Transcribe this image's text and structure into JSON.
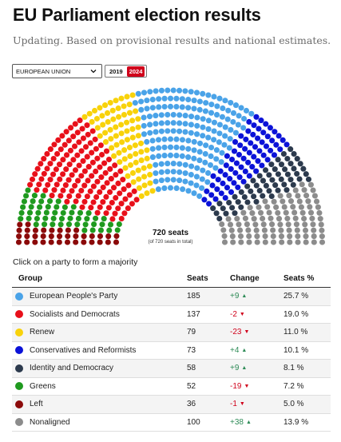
{
  "header": {
    "title": "EU Parliament election results",
    "subtitle": "Updating. Based on provisional results and national estimates."
  },
  "controls": {
    "region_select": "EUROPEAN UNION",
    "years": [
      "2019",
      "2024"
    ],
    "active_year": "2024"
  },
  "hemicycle": {
    "total_label": "720 seats",
    "total_sub": "(of 720 seats in total)"
  },
  "hint": "Click on a party to form a majority",
  "table": {
    "headers": {
      "group": "Group",
      "seats": "Seats",
      "change": "Change",
      "pct": "Seats %"
    },
    "rows": [
      {
        "group": "European People's Party",
        "seats": "185",
        "change": "+9",
        "direction": "up",
        "pct": "25.7 %",
        "color": "#4aa3e8"
      },
      {
        "group": "Socialists and Democrats",
        "seats": "137",
        "change": "-2",
        "direction": "down",
        "pct": "19.0 %",
        "color": "#e8101a"
      },
      {
        "group": "Renew",
        "seats": "79",
        "change": "-23",
        "direction": "down",
        "pct": "11.0 %",
        "color": "#f8d20a"
      },
      {
        "group": "Conservatives and Reformists",
        "seats": "73",
        "change": "+4",
        "direction": "up",
        "pct": "10.1 %",
        "color": "#0b12d8"
      },
      {
        "group": "Identity and Democracy",
        "seats": "58",
        "change": "+9",
        "direction": "up",
        "pct": "8.1 %",
        "color": "#2c3a4d"
      },
      {
        "group": "Greens",
        "seats": "52",
        "change": "-19",
        "direction": "down",
        "pct": "7.2 %",
        "color": "#1f9a1f"
      },
      {
        "group": "Left",
        "seats": "36",
        "change": "-1",
        "direction": "down",
        "pct": "5.0 %",
        "color": "#8b0a0a"
      },
      {
        "group": "Nonaligned",
        "seats": "100",
        "change": "+38",
        "direction": "up",
        "pct": "13.9 %",
        "color": "#8c8c8c"
      }
    ]
  },
  "chart_data": {
    "type": "hemicycle",
    "total": 720,
    "order": [
      "Left",
      "Greens",
      "Socialists and Democrats",
      "Renew",
      "European People's Party",
      "Conservatives and Reformists",
      "Identity and Democracy",
      "Nonaligned"
    ],
    "seats": {
      "Left": 36,
      "Greens": 52,
      "Socialists and Democrats": 137,
      "Renew": 79,
      "European People's Party": 185,
      "Conservatives and Reformists": 73,
      "Identity and Democracy": 58,
      "Nonaligned": 100
    },
    "colors": {
      "Left": "#8b0a0a",
      "Greens": "#1f9a1f",
      "Socialists and Democrats": "#e8101a",
      "Renew": "#f8d20a",
      "European People's Party": "#4aa3e8",
      "Conservatives and Reformists": "#0b12d8",
      "Identity and Democracy": "#2c3a4d",
      "Nonaligned": "#8c8c8c"
    }
  }
}
